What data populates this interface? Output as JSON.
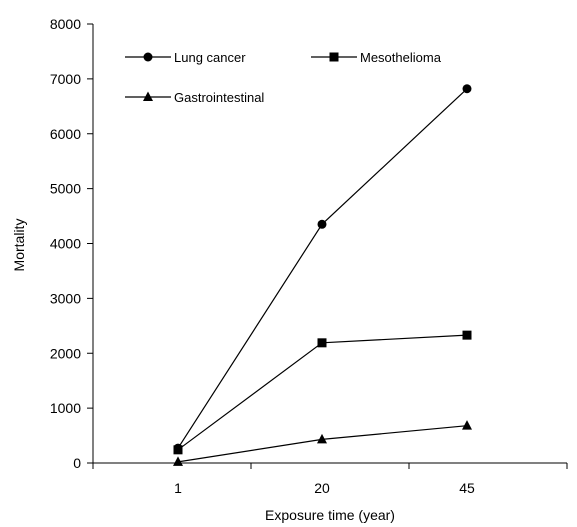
{
  "chart_data": {
    "type": "line",
    "xlabel": "Exposure time (year)",
    "ylabel": "Mortality",
    "categories": [
      "1",
      "20",
      "45"
    ],
    "ylim": [
      0,
      8000
    ],
    "yticks": [
      0,
      1000,
      2000,
      3000,
      4000,
      5000,
      6000,
      7000,
      8000
    ],
    "grid": false,
    "legend_position": "top-left",
    "series": [
      {
        "name": "Lung cancer",
        "marker": "circle",
        "values": [
          270,
          4350,
          6820
        ]
      },
      {
        "name": "Mesothelioma",
        "marker": "square",
        "values": [
          240,
          2190,
          2330
        ]
      },
      {
        "name": "Gastrointestinal",
        "marker": "triangle",
        "values": [
          20,
          430,
          680
        ]
      }
    ]
  }
}
